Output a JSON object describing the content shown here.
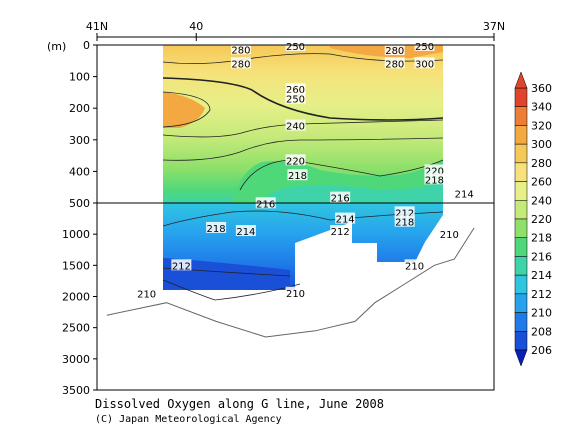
{
  "chart_data": {
    "type": "heatmap",
    "title": "Dissolved Oxygen along G line, June 2008",
    "credit": "(C) Japan Meteorological Agency",
    "ylabel": "(m)",
    "top_ticks": [
      {
        "value": 41,
        "label": "41N"
      },
      {
        "value": 40,
        "label": "40"
      },
      {
        "value": 37,
        "label": "37N"
      }
    ],
    "y_ticks": [
      0,
      100,
      200,
      300,
      400,
      500,
      1000,
      1500,
      2000,
      2500,
      3000,
      3500
    ],
    "y_break": 500,
    "colorbar": {
      "levels": [
        206,
        208,
        210,
        212,
        214,
        216,
        218,
        220,
        240,
        260,
        280,
        300,
        320,
        340,
        360
      ],
      "colors": [
        "#0a1fb8",
        "#1a4fd8",
        "#1f7be8",
        "#27a3ee",
        "#2fc5e0",
        "#3ed3a8",
        "#4fd87a",
        "#8ee06a",
        "#c6ea7a",
        "#e6ef88",
        "#f6e27a",
        "#f6c858",
        "#f3a842",
        "#ee7d35",
        "#e0452c"
      ]
    },
    "contour_labels": [
      {
        "x": 39.55,
        "depth": 14,
        "label": "280"
      },
      {
        "x": 39.55,
        "depth": 58,
        "label": "280"
      },
      {
        "x": 39.0,
        "depth": 3,
        "label": "250"
      },
      {
        "x": 38.0,
        "depth": 16,
        "label": "280"
      },
      {
        "x": 38.0,
        "depth": 58,
        "label": "280"
      },
      {
        "x": 37.7,
        "depth": 3,
        "label": "250"
      },
      {
        "x": 37.7,
        "depth": 58,
        "label": "300"
      },
      {
        "x": 39.0,
        "depth": 140,
        "label": "260"
      },
      {
        "x": 39.0,
        "depth": 170,
        "label": "250"
      },
      {
        "x": 39.0,
        "depth": 255,
        "label": "240"
      },
      {
        "x": 39.0,
        "depth": 365,
        "label": "220"
      },
      {
        "x": 38.98,
        "depth": 412,
        "label": "218"
      },
      {
        "x": 37.6,
        "depth": 397,
        "label": "220"
      },
      {
        "x": 37.6,
        "depth": 425,
        "label": "218"
      },
      {
        "x": 38.55,
        "depth": 483,
        "label": "216"
      },
      {
        "x": 39.3,
        "depth": 505,
        "label": "216"
      },
      {
        "x": 37.3,
        "depth": 470,
        "label": "214"
      },
      {
        "x": 38.5,
        "depth": 750,
        "label": "214"
      },
      {
        "x": 37.9,
        "depth": 650,
        "label": "212"
      },
      {
        "x": 37.9,
        "depth": 800,
        "label": "218"
      },
      {
        "x": 39.8,
        "depth": 900,
        "label": "218"
      },
      {
        "x": 39.5,
        "depth": 950,
        "label": "214"
      },
      {
        "x": 38.55,
        "depth": 950,
        "label": "212"
      },
      {
        "x": 37.45,
        "depth": 1000,
        "label": "210"
      },
      {
        "x": 40.15,
        "depth": 1500,
        "label": "212"
      },
      {
        "x": 37.8,
        "depth": 1500,
        "label": "210"
      },
      {
        "x": 39.0,
        "depth": 1940,
        "label": "210"
      },
      {
        "x": 40.5,
        "depth": 1950,
        "label": "210"
      }
    ],
    "bottom_profile": [
      {
        "x": 40.9,
        "depth": 2300
      },
      {
        "x": 40.3,
        "depth": 2100
      },
      {
        "x": 39.8,
        "depth": 2400
      },
      {
        "x": 39.3,
        "depth": 2650
      },
      {
        "x": 38.8,
        "depth": 2550
      },
      {
        "x": 38.4,
        "depth": 2400
      },
      {
        "x": 38.2,
        "depth": 2100
      },
      {
        "x": 37.9,
        "depth": 1800
      },
      {
        "x": 37.6,
        "depth": 1500
      },
      {
        "x": 37.4,
        "depth": 1400
      },
      {
        "x": 37.2,
        "depth": 900
      }
    ]
  }
}
